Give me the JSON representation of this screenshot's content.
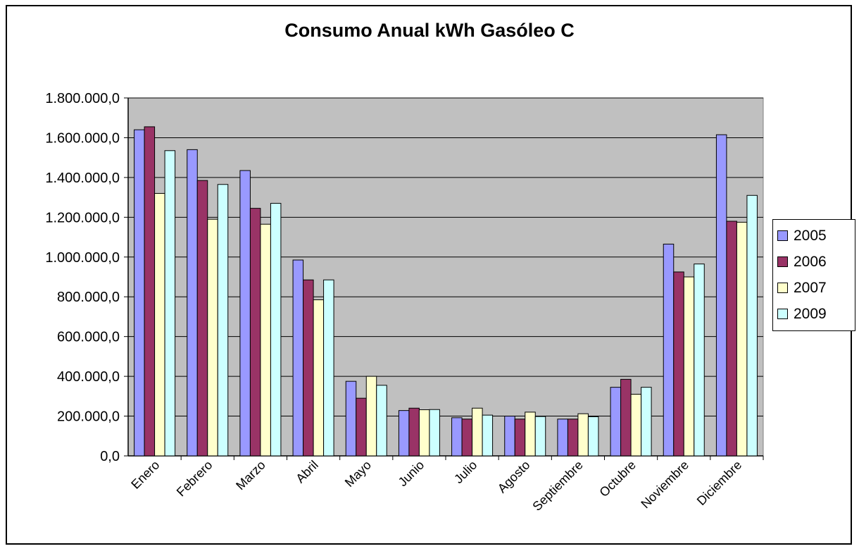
{
  "chart_data": {
    "type": "bar",
    "title": "Consumo Anual kWh Gasóleo C",
    "xlabel": "",
    "ylabel": "",
    "categories": [
      "Enero",
      "Febrero",
      "Marzo",
      "Abril",
      "Mayo",
      "Junio",
      "Julio",
      "Agosto",
      "Septiembre",
      "Octubre",
      "Noviembre",
      "Diciembre"
    ],
    "series": [
      {
        "name": "2005",
        "color": "#9999ff",
        "values": [
          1640000,
          1540000,
          1435000,
          985000,
          375000,
          228000,
          192000,
          200000,
          185000,
          345000,
          1065000,
          1615000
        ]
      },
      {
        "name": "2006",
        "color": "#993366",
        "values": [
          1655000,
          1385000,
          1245000,
          885000,
          290000,
          240000,
          185000,
          185000,
          185000,
          385000,
          925000,
          1180000
        ]
      },
      {
        "name": "2007",
        "color": "#ffffcc",
        "values": [
          1320000,
          1190000,
          1165000,
          785000,
          400000,
          232000,
          240000,
          220000,
          212000,
          310000,
          900000,
          1175000
        ]
      },
      {
        "name": "2009",
        "color": "#ccffff",
        "values": [
          1535000,
          1365000,
          1270000,
          885000,
          355000,
          233000,
          205000,
          198000,
          197000,
          345000,
          965000,
          1310000
        ]
      }
    ],
    "ylim": [
      0,
      1800000
    ],
    "ytick_step": 200000,
    "ytick_labels": [
      "0,0",
      "200.000,0",
      "400.000,0",
      "600.000,0",
      "800.000,0",
      "1.000.000,0",
      "1.200.000,0",
      "1.400.000,0",
      "1.600.000,0",
      "1.800.000,0"
    ],
    "grid": true,
    "plot_background": "#c0c0c0",
    "legend_position": "right"
  }
}
